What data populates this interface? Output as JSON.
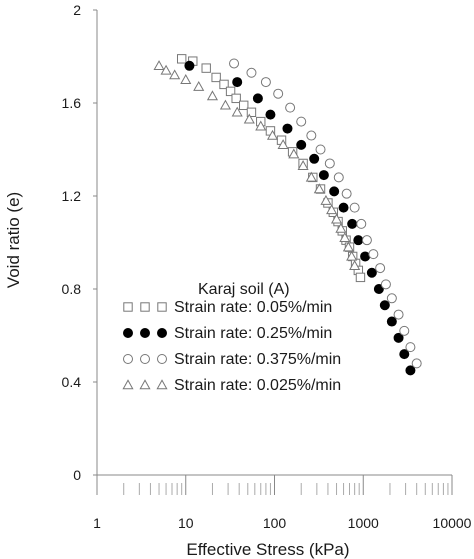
{
  "chart_data": {
    "type": "scatter",
    "title": "",
    "xlabel": "Effective Stress (kPa)",
    "ylabel": "Void ratio (e)",
    "xscale": "log",
    "xlim": [
      1,
      10000
    ],
    "ylim": [
      0,
      2
    ],
    "x_ticks": [
      1,
      10,
      100,
      1000,
      10000
    ],
    "x_tick_labels": [
      "1",
      "10",
      "100",
      "1000",
      "10000"
    ],
    "y_ticks": [
      0,
      0.4,
      0.8,
      1.2,
      1.6,
      2
    ],
    "y_tick_labels": [
      "0",
      "0.4",
      "0.8",
      "1.2",
      "1.6",
      "2"
    ],
    "grid": false,
    "legend_title": "Karaj soil (A)",
    "legend_position": "bottom-left",
    "series": [
      {
        "name": "Strain rate: 0.05%/min",
        "marker": "open-square",
        "color": "#777777",
        "x": [
          9,
          12,
          17,
          22,
          27,
          32,
          37,
          45,
          55,
          70,
          90,
          120,
          160,
          210,
          270,
          330,
          400,
          460,
          520,
          580,
          640,
          700,
          760,
          820,
          880,
          930
        ],
        "y": [
          1.79,
          1.78,
          1.75,
          1.71,
          1.68,
          1.65,
          1.62,
          1.59,
          1.56,
          1.52,
          1.48,
          1.44,
          1.39,
          1.34,
          1.28,
          1.23,
          1.17,
          1.13,
          1.09,
          1.05,
          1.01,
          0.98,
          0.94,
          0.91,
          0.88,
          0.85
        ]
      },
      {
        "name": "Strain rate: 0.25%/min",
        "marker": "filled-circle",
        "color": "#000000",
        "x": [
          11,
          38,
          65,
          90,
          140,
          200,
          280,
          360,
          470,
          600,
          750,
          880,
          1050,
          1250,
          1500,
          1750,
          2100,
          2500,
          2900,
          3400
        ],
        "y": [
          1.76,
          1.69,
          1.62,
          1.55,
          1.49,
          1.42,
          1.36,
          1.29,
          1.22,
          1.15,
          1.08,
          1.01,
          0.94,
          0.87,
          0.8,
          0.73,
          0.66,
          0.59,
          0.52,
          0.45
        ]
      },
      {
        "name": "Strain rate: 0.375%/min",
        "marker": "open-circle",
        "color": "#777777",
        "x": [
          35,
          55,
          80,
          110,
          150,
          200,
          260,
          330,
          420,
          530,
          650,
          800,
          950,
          1100,
          1300,
          1550,
          1800,
          2100,
          2500,
          2900,
          3400,
          4000
        ],
        "y": [
          1.77,
          1.73,
          1.69,
          1.64,
          1.58,
          1.52,
          1.46,
          1.4,
          1.34,
          1.28,
          1.21,
          1.15,
          1.08,
          1.01,
          0.95,
          0.89,
          0.82,
          0.76,
          0.69,
          0.62,
          0.55,
          0.48
        ]
      },
      {
        "name": "Strain rate: 0.025%/min",
        "marker": "open-triangle",
        "color": "#777777",
        "x": [
          5,
          6,
          7.5,
          10,
          14,
          20,
          28,
          38,
          52,
          70,
          95,
          125,
          165,
          210,
          260,
          320,
          380,
          440,
          500,
          560,
          620,
          680,
          740,
          800
        ],
        "y": [
          1.76,
          1.74,
          1.72,
          1.7,
          1.67,
          1.63,
          1.59,
          1.56,
          1.53,
          1.5,
          1.46,
          1.42,
          1.38,
          1.33,
          1.28,
          1.23,
          1.18,
          1.14,
          1.1,
          1.06,
          1.02,
          0.98,
          0.94,
          0.9
        ]
      }
    ]
  }
}
